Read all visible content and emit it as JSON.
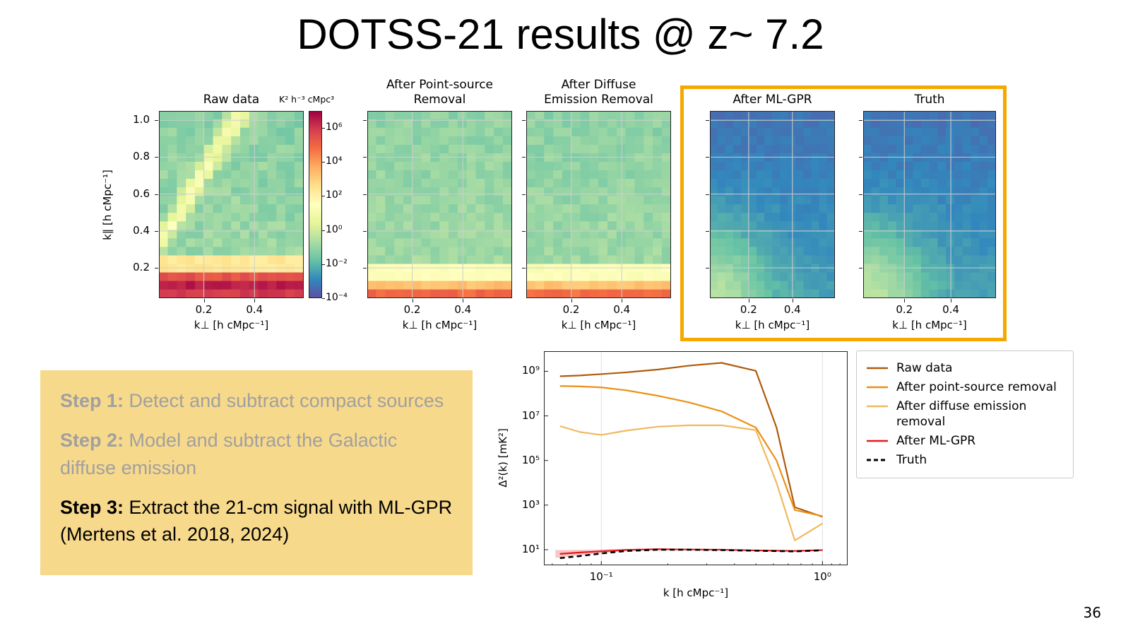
{
  "title": "DOTSS-21 results @ z~ 7.2",
  "page_number": "36",
  "steps": {
    "bg_color": "#F7D98C",
    "muted_color": "#A0A0A0",
    "items": [
      {
        "label": "Step 1:",
        "text": " Detect and subtract compact sources",
        "muted": true
      },
      {
        "label": "Step 2:",
        "text": " Model and subtract the Galactic diffuse emission",
        "muted": true
      },
      {
        "label": "Step 3:",
        "text": " Extract the 21-cm signal with ML-GPR (Mertens et al. 2018, 2024)",
        "muted": false
      }
    ]
  },
  "chart_data": [
    {
      "name": "delta2_vs_k",
      "type": "line",
      "xlabel": "k [h cMpc⁻¹]",
      "ylabel": "Δ²(k) [mK²]",
      "x_scale": "log",
      "y_scale": "log",
      "xlim": [
        0.055,
        1.3
      ],
      "ylim": [
        2,
        8000000000.0
      ],
      "grid": "vertical-major-only",
      "legend_position": "outside upper right",
      "x_ticks": [
        {
          "value": 0.1,
          "label": "10⁻¹"
        },
        {
          "value": 1.0,
          "label": "10⁰"
        }
      ],
      "y_ticks": [
        {
          "log": 9,
          "label": "10⁹"
        },
        {
          "log": 7,
          "label": "10⁷"
        },
        {
          "log": 5,
          "label": "10⁵"
        },
        {
          "log": 3,
          "label": "10³"
        },
        {
          "log": 1,
          "label": "10¹"
        }
      ],
      "x": [
        0.065,
        0.08,
        0.1,
        0.13,
        0.18,
        0.25,
        0.35,
        0.5,
        0.62,
        0.75,
        1.0
      ],
      "series": [
        {
          "name": "Raw data",
          "color": "#AF5B0A",
          "dash": false,
          "values": [
            600000000.0,
            650000000.0,
            750000000.0,
            900000000.0,
            1200000000.0,
            1800000000.0,
            2400000000.0,
            1050000000.0,
            3000000.0,
            800.0,
            300.0
          ]
        },
        {
          "name": "After point-source removal",
          "color": "#EA9117",
          "dash": false,
          "values": [
            220000000.0,
            210000000.0,
            190000000.0,
            140000000.0,
            80000000.0,
            40000000.0,
            16000000.0,
            3000000.0,
            100000.0,
            600.0,
            320.0
          ]
        },
        {
          "name": "After diffuse emission removal",
          "color": "#F0B95F",
          "dash": false,
          "values": [
            3500000.0,
            1900000.0,
            1400000.0,
            2200000.0,
            3300000.0,
            3800000.0,
            3800000.0,
            2300000.0,
            10000.0,
            26.0,
            150.0
          ]
        },
        {
          "name": "After ML-GPR",
          "color": "#E41A1C",
          "dash": false,
          "values": [
            6.5,
            7.5,
            8.5,
            9.8,
            10.5,
            10.2,
            10,
            9.3,
            9,
            8.8,
            9.6
          ],
          "band": {
            "x": [
              0.062,
              0.08,
              0.1,
              0.13,
              0.18
            ],
            "lo": [
              4.3,
              5.6,
              7.0,
              8.8,
              9.8
            ],
            "hi": [
              9.6,
              9.9,
              10.3,
              10.9,
              11.2
            ]
          }
        },
        {
          "name": "Truth",
          "color": "#000000",
          "dash": true,
          "values": [
            4.2,
            5.2,
            6.8,
            8.8,
            10,
            10,
            9.6,
            9,
            8.7,
            8.4,
            9.4
          ]
        }
      ]
    },
    {
      "name": "cylindrical_power_spectra",
      "type": "heatmap",
      "ylabel": "k∥ [h cMpc⁻¹]",
      "xlabel": "k⊥ [h cMpc⁻¹]",
      "y_tick_labels": [
        "1.0",
        "0.8",
        "0.6",
        "0.4",
        "0.2"
      ],
      "x_tick_labels": [
        "0.2",
        "0.4"
      ],
      "highlight_color": "#F5A800",
      "colorbar": {
        "title": "K² h⁻³ cMpc³",
        "tick_labels": [
          "10⁶",
          "10⁴",
          "10²",
          "10⁰",
          "10⁻²",
          "10⁻⁴"
        ],
        "tick_logs": [
          6,
          4,
          2,
          0,
          -2,
          -4
        ],
        "range_log10": [
          -4,
          7
        ],
        "colormap": "Spectral_r"
      },
      "colormap_stops": [
        "#5e4fa2",
        "#3288bd",
        "#66c2a5",
        "#abdda4",
        "#e6f598",
        "#ffffbf",
        "#fee08b",
        "#fdae61",
        "#f46d43",
        "#d53e4f",
        "#9e0142"
      ],
      "panels": [
        {
          "title_lines": [
            "Raw data"
          ],
          "highlighted": false,
          "model": {
            "seed": 11,
            "base": -1.25,
            "grad": 0.35,
            "noise": 0.4,
            "streak": 2.3,
            "bands": [
              [
                0.78,
                2.3
              ],
              [
                0.845,
                4.0
              ],
              [
                0.885,
                5.4
              ],
              [
                0.925,
                6.5
              ],
              [
                0.968,
                6.0
              ]
            ]
          }
        },
        {
          "title_lines": [
            "After Point-source",
            "Removal"
          ],
          "highlighted": false,
          "model": {
            "seed": 23,
            "base": -1.15,
            "grad": 0.35,
            "noise": 0.32,
            "bands": [
              [
                0.83,
                1.4
              ],
              [
                0.905,
                3.3
              ],
              [
                0.95,
                4.5
              ],
              [
                0.975,
                4.9
              ]
            ]
          }
        },
        {
          "title_lines": [
            "After Diffuse",
            "Emission Removal"
          ],
          "highlighted": false,
          "model": {
            "seed": 37,
            "base": -1.2,
            "grad": 0.35,
            "noise": 0.32,
            "bands": [
              [
                0.83,
                1.3
              ],
              [
                0.905,
                3.2
              ],
              [
                0.95,
                4.4
              ],
              [
                0.975,
                4.8
              ]
            ]
          }
        },
        {
          "title_lines": [
            "After ML-GPR"
          ],
          "highlighted": true,
          "model": {
            "seed": 51,
            "base": -3.3,
            "grad": 0.8,
            "noise": 0.18,
            "glow": 2.1
          }
        },
        {
          "title_lines": [
            "Truth"
          ],
          "highlighted": true,
          "model": {
            "seed": 67,
            "base": -3.3,
            "grad": 0.8,
            "noise": 0.18,
            "glow": 2.2
          }
        }
      ]
    }
  ]
}
